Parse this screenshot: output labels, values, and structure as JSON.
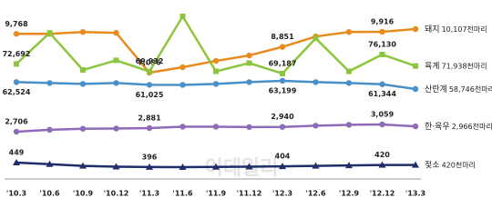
{
  "chart_data": {
    "type": "line",
    "categories": [
      "'10.3",
      "'10.6",
      "'10.9",
      "'10.12",
      "'11.3",
      "'11.6",
      "'11.9",
      "'11.12",
      "'12.3",
      "'12.6",
      "'12.9",
      "'12.12",
      "'13.3"
    ],
    "watermark": "이데일리",
    "series": [
      {
        "name": "돼지",
        "color": "#e98a1c",
        "marker": "circle",
        "end_label": "10,107천마리",
        "values": [
          9768,
          9768,
          9900,
          9840,
          7036,
          7418,
          7864,
          8246,
          8851,
          9584,
          9900,
          9916,
          10107
        ],
        "value_labels": [
          "9,768",
          null,
          null,
          null,
          "7,036",
          null,
          null,
          null,
          "8,851",
          null,
          null,
          "9,916",
          null
        ]
      },
      {
        "name": "육계",
        "color": "#8cc63f",
        "marker": "square",
        "end_label": "71,938천마리",
        "values": [
          72692,
          84000,
          70500,
          74000,
          69932,
          90000,
          70000,
          73000,
          69187,
          82000,
          70000,
          76130,
          71938
        ],
        "value_labels": [
          "72,692",
          null,
          null,
          null,
          "69,932",
          null,
          null,
          null,
          "69,187",
          null,
          null,
          "76,130",
          null
        ]
      },
      {
        "name": "산란계",
        "color": "#4a90c8",
        "marker": "circle",
        "end_label": "58,746천마리",
        "values": [
          62524,
          62000,
          61500,
          62000,
          61025,
          61000,
          61500,
          62500,
          63199,
          62500,
          62000,
          61344,
          58746
        ],
        "value_labels": [
          "62,524",
          null,
          null,
          null,
          "61,025",
          null,
          null,
          null,
          "63,199",
          null,
          null,
          "61,344",
          null
        ]
      },
      {
        "name": "한·육우",
        "color": "#8e6bb8",
        "marker": "circle",
        "end_label": "2,966천마리",
        "values": [
          2706,
          2800,
          2850,
          2860,
          2881,
          2950,
          2950,
          2930,
          2940,
          3000,
          3040,
          3059,
          2966
        ],
        "value_labels": [
          "2,706",
          null,
          null,
          null,
          "2,881",
          null,
          null,
          null,
          "2,940",
          null,
          null,
          "3,059",
          null
        ]
      },
      {
        "name": "젖소",
        "color": "#1f2d6b",
        "marker": "triangle",
        "end_label": "420천마리",
        "values": [
          449,
          430,
          410,
          400,
          396,
          395,
          398,
          400,
          404,
          410,
          415,
          420,
          420
        ],
        "value_labels": [
          "449",
          null,
          null,
          null,
          "396",
          null,
          null,
          null,
          "404",
          null,
          null,
          "420",
          null
        ]
      }
    ]
  }
}
